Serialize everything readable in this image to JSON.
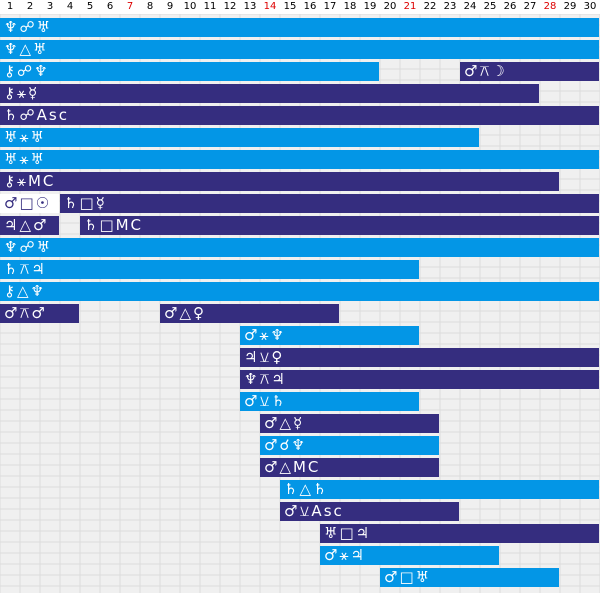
{
  "header": {
    "days": [
      "1",
      "2",
      "3",
      "4",
      "5",
      "6",
      "7",
      "8",
      "9",
      "10",
      "11",
      "12",
      "13",
      "14",
      "15",
      "16",
      "17",
      "18",
      "19",
      "20",
      "21",
      "22",
      "23",
      "24",
      "25",
      "26",
      "27",
      "28",
      "29",
      "30"
    ],
    "sundays": [
      "7",
      "14",
      "21",
      "28"
    ]
  },
  "colors": {
    "light": "#0396e6",
    "dark": "#352d7f",
    "sunday": "#dd0000",
    "grid": "#dcdcdc",
    "background": "#f0f0f0"
  },
  "aspects": [
    {
      "label": "♆☍♅",
      "start": 1,
      "end": 30,
      "style": "light"
    },
    {
      "label": "♆△♅",
      "start": 1,
      "end": 30,
      "style": "light"
    },
    {
      "label": "⚷☍♆",
      "start": 1,
      "end": 19,
      "style": "light"
    },
    {
      "label": "♂⚻☽",
      "start": 24,
      "end": 30,
      "style": "dark"
    },
    {
      "label": "⚷⚹☿",
      "start": 1,
      "end": 27,
      "style": "dark"
    },
    {
      "label": "♄☍Asc",
      "start": 1,
      "end": 30,
      "style": "dark"
    },
    {
      "label": "♅⚹♅",
      "start": 1,
      "end": 24,
      "style": "light"
    },
    {
      "label": "♅⚹♅",
      "start": 1,
      "end": 30,
      "style": "light"
    },
    {
      "label": "⚷⚹MC",
      "start": 1,
      "end": 28,
      "style": "dark"
    },
    {
      "label": "♂□☉",
      "start": 1,
      "end": 3,
      "style": "white"
    },
    {
      "label": "♄□☿",
      "start": 4,
      "end": 30,
      "style": "dark"
    },
    {
      "label": "♃△♂",
      "start": 1,
      "end": 3,
      "style": "dark"
    },
    {
      "label": "♄□MC",
      "start": 5,
      "end": 30,
      "style": "dark"
    },
    {
      "label": "♆☍♅",
      "start": 1,
      "end": 30,
      "style": "light"
    },
    {
      "label": "♄⚻♃",
      "start": 1,
      "end": 21,
      "style": "light"
    },
    {
      "label": "⚷△♆",
      "start": 1,
      "end": 30,
      "style": "light"
    },
    {
      "label": "♂⚻♂",
      "start": 1,
      "end": 4,
      "style": "dark"
    },
    {
      "label": "♂△♀",
      "start": 9,
      "end": 17,
      "style": "dark"
    },
    {
      "label": "♂⚹♆",
      "start": 13,
      "end": 21,
      "style": "light"
    },
    {
      "label": "♃⚺♀",
      "start": 13,
      "end": 30,
      "style": "dark"
    },
    {
      "label": "♆⚻♃",
      "start": 13,
      "end": 30,
      "style": "dark"
    },
    {
      "label": "♂⚺♄",
      "start": 13,
      "end": 21,
      "style": "light"
    },
    {
      "label": "♂△☿",
      "start": 14,
      "end": 22,
      "style": "dark"
    },
    {
      "label": "♂☌♆",
      "start": 14,
      "end": 22,
      "style": "light"
    },
    {
      "label": "♂△MC",
      "start": 14,
      "end": 22,
      "style": "dark"
    },
    {
      "label": "♄△♄",
      "start": 15,
      "end": 30,
      "style": "light"
    },
    {
      "label": "♂⚺Asc",
      "start": 15,
      "end": 23,
      "style": "dark"
    },
    {
      "label": "♅□♃",
      "start": 17,
      "end": 30,
      "style": "dark"
    },
    {
      "label": "♂⚹♃",
      "start": 17,
      "end": 25,
      "style": "light"
    },
    {
      "label": "♂□♅",
      "start": 20,
      "end": 28,
      "style": "light"
    }
  ]
}
